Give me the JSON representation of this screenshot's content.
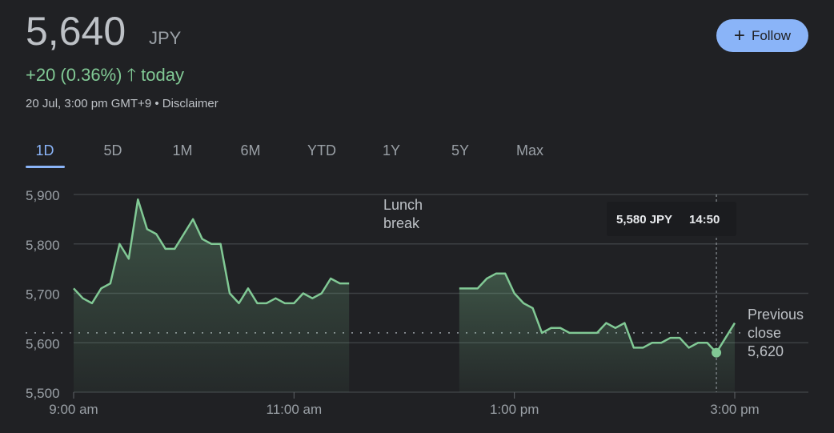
{
  "header": {
    "price": "5,640",
    "currency": "JPY",
    "change": "+20 (0.36%)",
    "change_suffix": "today",
    "date_line": "20 Jul, 3:00 pm GMT+9 • Disclaimer",
    "follow_label": "Follow",
    "follow_icon": "plus-icon",
    "up_icon": "arrow-up-icon"
  },
  "tabs": [
    "1D",
    "5D",
    "1M",
    "6M",
    "YTD",
    "1Y",
    "5Y",
    "Max"
  ],
  "active_tab": "1D",
  "colors": {
    "line": "#81c995",
    "accent": "#8ab4f8",
    "background": "#202124"
  },
  "chart_data": {
    "type": "area",
    "ylim": [
      5500,
      5900
    ],
    "y_ticks": [
      "5,500",
      "5,600",
      "5,700",
      "5,800",
      "5,900"
    ],
    "x_ticks": [
      "9:00 am",
      "11:00 am",
      "1:00 pm",
      "3:00 pm"
    ],
    "grid": true,
    "interval_minutes": 5,
    "morning": {
      "start": "9:00",
      "values": [
        5710,
        5690,
        5680,
        5710,
        5720,
        5800,
        5770,
        5890,
        5830,
        5820,
        5790,
        5790,
        5820,
        5850,
        5810,
        5800,
        5800,
        5700,
        5680,
        5710,
        5680,
        5680,
        5690,
        5680,
        5680,
        5700,
        5690,
        5700,
        5730,
        5720,
        5720
      ]
    },
    "afternoon": {
      "start": "12:30",
      "values": [
        5710,
        5710,
        5710,
        5730,
        5740,
        5740,
        5700,
        5680,
        5670,
        5620,
        5630,
        5630,
        5620,
        5620,
        5620,
        5620,
        5640,
        5630,
        5640,
        5590,
        5590,
        5600,
        5600,
        5610,
        5610,
        5590,
        5600,
        5600,
        5580,
        5610,
        5640
      ]
    },
    "previous_close": 5620,
    "previous_close_label": [
      "Previous",
      "close",
      "5,620"
    ],
    "lunch_label": [
      "Lunch",
      "break"
    ],
    "tooltip": {
      "value": "5,580 JPY",
      "time": "14:50"
    }
  }
}
